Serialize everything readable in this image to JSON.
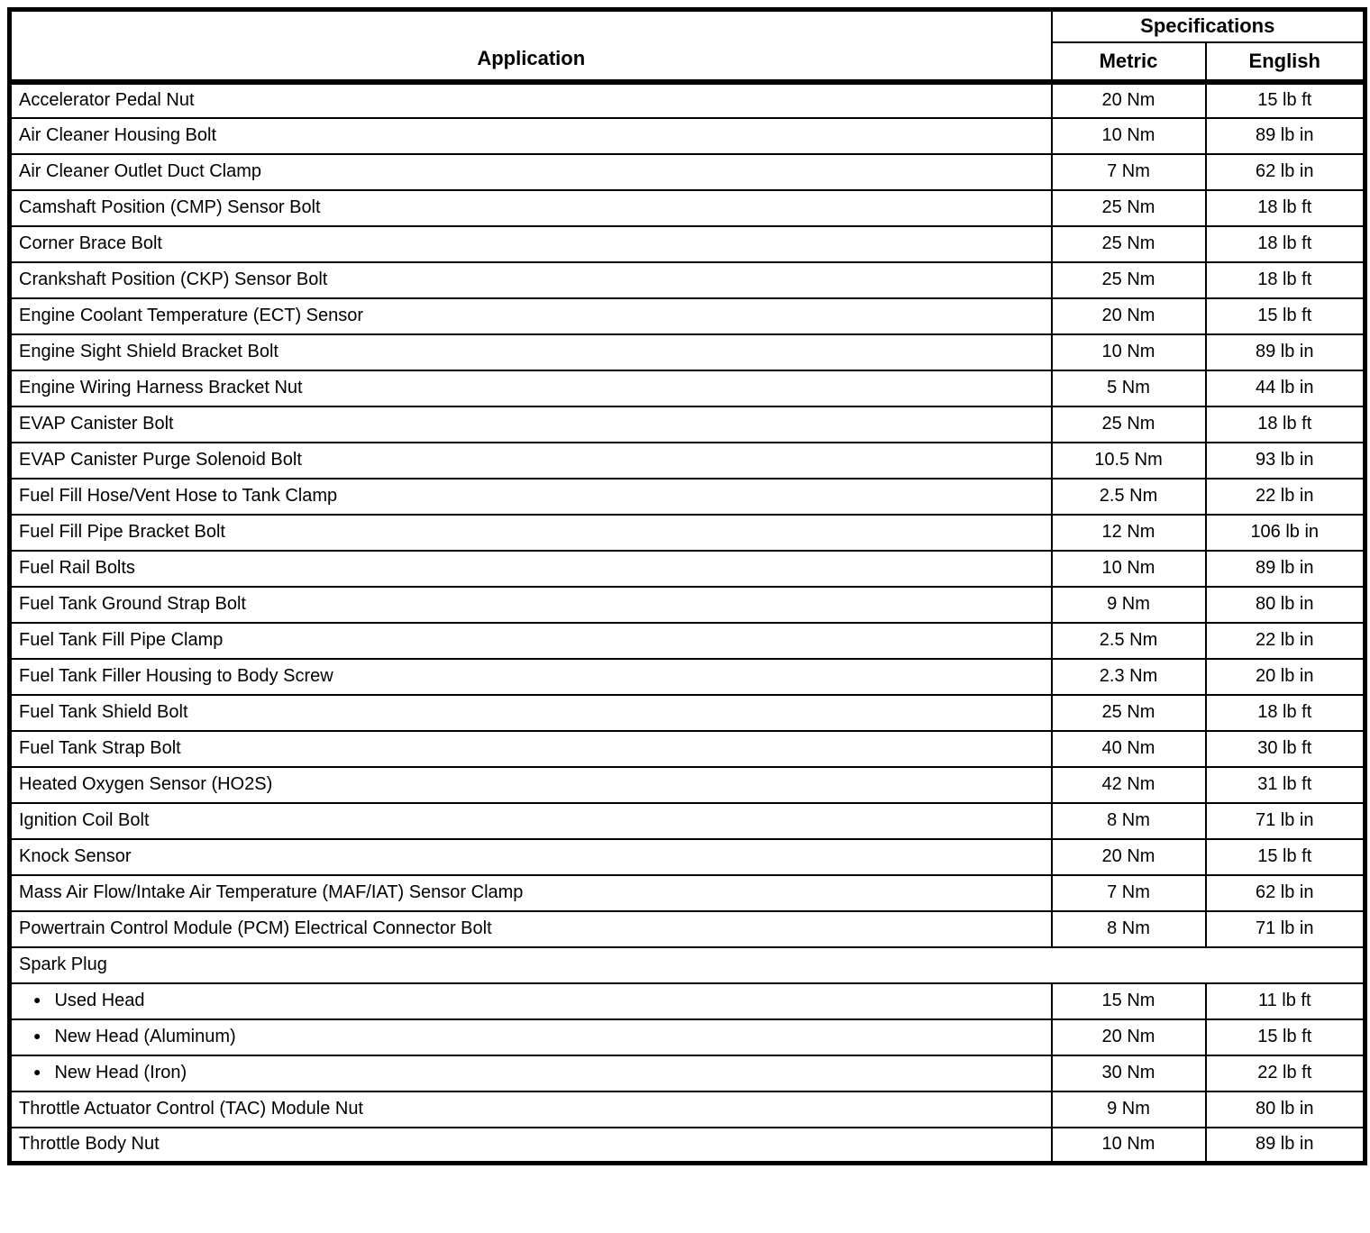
{
  "table": {
    "bullet_icon": "●",
    "header": {
      "application": "Application",
      "specifications": "Specifications",
      "metric": "Metric",
      "english": "English"
    },
    "rows": [
      {
        "type": "normal",
        "application": "Accelerator Pedal Nut",
        "metric": "20 Nm",
        "english": "15 lb ft"
      },
      {
        "type": "normal",
        "application": "Air Cleaner Housing Bolt",
        "metric": "10 Nm",
        "english": "89 lb in"
      },
      {
        "type": "normal",
        "application": "Air Cleaner Outlet Duct Clamp",
        "metric": "7 Nm",
        "english": "62 lb in"
      },
      {
        "type": "normal",
        "application": "Camshaft Position (CMP) Sensor Bolt",
        "metric": "25 Nm",
        "english": "18 lb ft"
      },
      {
        "type": "normal",
        "application": "Corner Brace Bolt",
        "metric": "25 Nm",
        "english": "18 lb ft"
      },
      {
        "type": "normal",
        "application": "Crankshaft Position (CKP) Sensor Bolt",
        "metric": "25 Nm",
        "english": "18 lb ft"
      },
      {
        "type": "normal",
        "application": "Engine Coolant Temperature (ECT) Sensor",
        "metric": "20 Nm",
        "english": "15 lb ft"
      },
      {
        "type": "normal",
        "application": "Engine Sight Shield Bracket Bolt",
        "metric": "10 Nm",
        "english": "89 lb in"
      },
      {
        "type": "normal",
        "application": "Engine Wiring Harness Bracket Nut",
        "metric": "5 Nm",
        "english": "44 lb in"
      },
      {
        "type": "normal",
        "application": "EVAP Canister Bolt",
        "metric": "25 Nm",
        "english": "18 lb ft"
      },
      {
        "type": "normal",
        "application": "EVAP Canister Purge Solenoid Bolt",
        "metric": "10.5 Nm",
        "english": "93 lb in"
      },
      {
        "type": "normal",
        "application": "Fuel Fill Hose/Vent Hose to Tank Clamp",
        "metric": "2.5 Nm",
        "english": "22 lb in"
      },
      {
        "type": "normal",
        "application": "Fuel Fill Pipe Bracket Bolt",
        "metric": "12 Nm",
        "english": "106 lb in"
      },
      {
        "type": "normal",
        "application": "Fuel Rail Bolts",
        "metric": "10 Nm",
        "english": "89 lb in"
      },
      {
        "type": "normal",
        "application": "Fuel Tank Ground Strap Bolt",
        "metric": "9 Nm",
        "english": "80 lb in"
      },
      {
        "type": "normal",
        "application": "Fuel Tank Fill Pipe Clamp",
        "metric": "2.5 Nm",
        "english": "22 lb in"
      },
      {
        "type": "normal",
        "application": "Fuel Tank Filler Housing to Body Screw",
        "metric": "2.3 Nm",
        "english": "20 lb in"
      },
      {
        "type": "normal",
        "application": "Fuel Tank Shield Bolt",
        "metric": "25 Nm",
        "english": "18 lb ft"
      },
      {
        "type": "normal",
        "application": "Fuel Tank Strap Bolt",
        "metric": "40 Nm",
        "english": "30 lb ft"
      },
      {
        "type": "normal",
        "application": "Heated Oxygen Sensor (HO2S)",
        "metric": "42 Nm",
        "english": "31 lb ft"
      },
      {
        "type": "normal",
        "application": "Ignition Coil Bolt",
        "metric": "8 Nm",
        "english": "71 lb in"
      },
      {
        "type": "normal",
        "application": "Knock Sensor",
        "metric": "20 Nm",
        "english": "15 lb ft"
      },
      {
        "type": "normal",
        "application": "Mass Air Flow/Intake Air Temperature (MAF/IAT) Sensor Clamp",
        "metric": "7 Nm",
        "english": "62 lb in"
      },
      {
        "type": "normal",
        "application": "Powertrain Control Module (PCM) Electrical Connector Bolt",
        "metric": "8 Nm",
        "english": "71 lb in"
      },
      {
        "type": "section",
        "application": "Spark Plug"
      },
      {
        "type": "bullet",
        "application": "Used Head",
        "metric": "15 Nm",
        "english": "11 lb ft"
      },
      {
        "type": "bullet",
        "application": "New Head (Aluminum)",
        "metric": "20 Nm",
        "english": "15 lb ft"
      },
      {
        "type": "bullet",
        "application": "New Head (Iron)",
        "metric": "30 Nm",
        "english": "22 lb ft"
      },
      {
        "type": "normal",
        "application": "Throttle Actuator Control (TAC) Module Nut",
        "metric": "9 Nm",
        "english": "80 lb in"
      },
      {
        "type": "normal",
        "application": "Throttle Body Nut",
        "metric": "10 Nm",
        "english": "89 lb in"
      }
    ]
  }
}
